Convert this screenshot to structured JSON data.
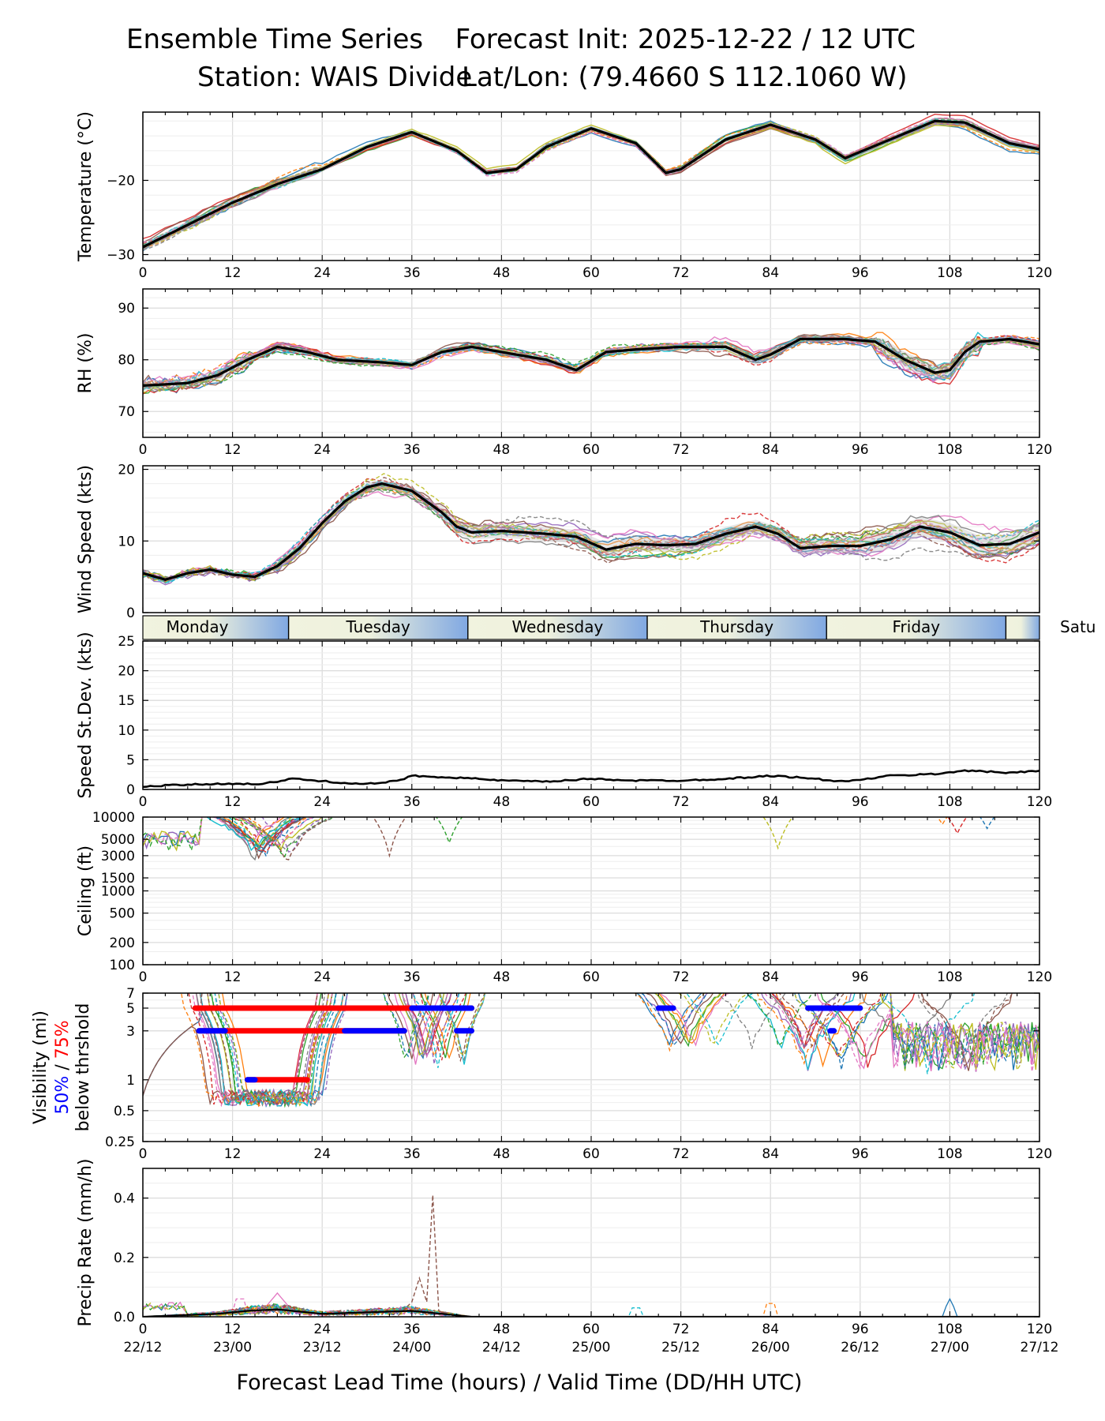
{
  "title": {
    "left": "Ensemble Time Series",
    "right": "Forecast Init: 2025-12-22 / 12 UTC",
    "station": "Station: WAIS Divide",
    "latlon": "Lat/Lon: (79.4660 S 112.1060 W)"
  },
  "colors": {
    "mean": "#000000",
    "grid": "#dddddd",
    "below50": "#0000ff",
    "below75": "#ff0000",
    "members": [
      "#1f77b4",
      "#ff7f0e",
      "#2ca02c",
      "#d62728",
      "#9467bd",
      "#8c564b",
      "#e377c2",
      "#7f7f7f",
      "#bcbd22",
      "#17becf"
    ]
  },
  "chart_data": {
    "type": "line",
    "x_range": [
      0,
      120
    ],
    "x_ticks": [
      0,
      12,
      24,
      36,
      48,
      60,
      72,
      84,
      96,
      108,
      120
    ],
    "x_tick_labels": [
      "0",
      "12",
      "24",
      "36",
      "48",
      "60",
      "72",
      "84",
      "96",
      "108",
      "120"
    ],
    "valid_time_labels": [
      "22/12",
      "23/00",
      "23/12",
      "24/00",
      "24/12",
      "25/00",
      "25/12",
      "26/00",
      "26/12",
      "27/00",
      "27/12"
    ],
    "xlabel": "Forecast Lead Time (hours) / Valid Time (DD/HH UTC)",
    "members_count": 20,
    "panels": {
      "temperature": {
        "ylabel": "Temperature (°C)",
        "ylim": [
          -30.8,
          -10.8
        ],
        "yticks": [
          -20,
          -30
        ],
        "ytick_labels": [
          "−20",
          "−30"
        ],
        "mean": [
          [
            0,
            -29
          ],
          [
            6,
            -26
          ],
          [
            12,
            -23
          ],
          [
            18,
            -20.5
          ],
          [
            24,
            -18.5
          ],
          [
            30,
            -15.5
          ],
          [
            36,
            -13.5
          ],
          [
            42,
            -16
          ],
          [
            46,
            -19
          ],
          [
            50,
            -18.5
          ],
          [
            54,
            -15.5
          ],
          [
            60,
            -13
          ],
          [
            66,
            -15
          ],
          [
            70,
            -19
          ],
          [
            72,
            -18.5
          ],
          [
            78,
            -14.5
          ],
          [
            84,
            -12.5
          ],
          [
            90,
            -14.5
          ],
          [
            94,
            -17
          ],
          [
            100,
            -14.5
          ],
          [
            106,
            -12
          ],
          [
            110,
            -12.2
          ],
          [
            116,
            -15
          ],
          [
            120,
            -15.8
          ]
        ]
      },
      "rh": {
        "ylabel": "RH (%)",
        "ylim": [
          65,
          93.7
        ],
        "yticks": [
          70,
          80,
          90
        ],
        "ytick_labels": [
          "70",
          "80",
          "90"
        ],
        "mean": [
          [
            0,
            75
          ],
          [
            6,
            75.5
          ],
          [
            10,
            77
          ],
          [
            14,
            80
          ],
          [
            18,
            82.5
          ],
          [
            22,
            81.5
          ],
          [
            26,
            80
          ],
          [
            32,
            79.5
          ],
          [
            36,
            79
          ],
          [
            40,
            81.5
          ],
          [
            44,
            82.5
          ],
          [
            48,
            81.5
          ],
          [
            54,
            80
          ],
          [
            58,
            78
          ],
          [
            62,
            81.5
          ],
          [
            66,
            82
          ],
          [
            72,
            82.5
          ],
          [
            78,
            82.5
          ],
          [
            82,
            80
          ],
          [
            84,
            81
          ],
          [
            88,
            84
          ],
          [
            94,
            84
          ],
          [
            98,
            83.5
          ],
          [
            102,
            80
          ],
          [
            106,
            77.5
          ],
          [
            108,
            78
          ],
          [
            110,
            81.5
          ],
          [
            112,
            83.5
          ],
          [
            116,
            84
          ],
          [
            120,
            83
          ]
        ]
      },
      "wind_speed": {
        "ylabel": "Wind Speed (kts)",
        "ylim": [
          0,
          20.5
        ],
        "yticks": [
          0,
          10,
          20
        ],
        "ytick_labels": [
          "0",
          "10",
          "20"
        ],
        "mean": [
          [
            0,
            5.5
          ],
          [
            3,
            4.6
          ],
          [
            6,
            5.5
          ],
          [
            9,
            6
          ],
          [
            12,
            5.3
          ],
          [
            15,
            5
          ],
          [
            18,
            6.5
          ],
          [
            21,
            9
          ],
          [
            24,
            12.5
          ],
          [
            27,
            15.5
          ],
          [
            30,
            17.5
          ],
          [
            32,
            18
          ],
          [
            36,
            17
          ],
          [
            40,
            14
          ],
          [
            42,
            12
          ],
          [
            44,
            11.2
          ],
          [
            48,
            11.4
          ],
          [
            54,
            11
          ],
          [
            58,
            10.6
          ],
          [
            62,
            8.8
          ],
          [
            66,
            9.6
          ],
          [
            70,
            9.4
          ],
          [
            74,
            9.6
          ],
          [
            78,
            11
          ],
          [
            82,
            12
          ],
          [
            85,
            11
          ],
          [
            88,
            9
          ],
          [
            92,
            9.3
          ],
          [
            96,
            9.3
          ],
          [
            100,
            10.2
          ],
          [
            104,
            12
          ],
          [
            108,
            11.2
          ],
          [
            112,
            9.4
          ],
          [
            116,
            9.6
          ],
          [
            120,
            11.2
          ]
        ]
      },
      "speed_stdev": {
        "ylabel": "Speed St.Dev. (kts)",
        "ylim": [
          0,
          25
        ],
        "yticks": [
          0,
          5,
          10,
          15,
          20,
          25
        ],
        "ytick_labels": [
          "0",
          "5",
          "10",
          "15",
          "20",
          "25"
        ],
        "mean": [
          [
            0,
            0.5
          ],
          [
            6,
            0.8
          ],
          [
            12,
            1
          ],
          [
            16,
            0.9
          ],
          [
            20,
            1.8
          ],
          [
            22,
            1.6
          ],
          [
            26,
            1.2
          ],
          [
            30,
            0.9
          ],
          [
            34,
            1.4
          ],
          [
            36,
            2.3
          ],
          [
            42,
            2
          ],
          [
            48,
            1.5
          ],
          [
            54,
            1.3
          ],
          [
            60,
            1.8
          ],
          [
            66,
            1.5
          ],
          [
            72,
            1.5
          ],
          [
            78,
            1.8
          ],
          [
            84,
            2.3
          ],
          [
            88,
            2
          ],
          [
            94,
            1.3
          ],
          [
            100,
            2.3
          ],
          [
            106,
            2.6
          ],
          [
            110,
            3.2
          ],
          [
            116,
            2.8
          ],
          [
            120,
            3.2
          ]
        ]
      },
      "ceiling": {
        "ylabel": "Ceiling (ft)",
        "scale": "log",
        "ylim": [
          100,
          10000
        ],
        "yticks": [
          100,
          200,
          500,
          1000,
          1500,
          3000,
          5000,
          10000
        ],
        "ytick_labels": [
          "100",
          "200",
          "500",
          "1000",
          "1500",
          "3000",
          "5000",
          "10000"
        ]
      },
      "visibility": {
        "ylabel_parts": [
          "Visibility (mi)",
          "50%",
          " / ",
          "75%",
          "below thrshold"
        ],
        "scale": "log",
        "ylim": [
          0.25,
          7
        ],
        "yticks": [
          0.25,
          0.5,
          1,
          3,
          5,
          7
        ],
        "ytick_labels": [
          "0.25",
          "0.5",
          "1",
          "3",
          "5",
          "7"
        ],
        "threshold_bars": [
          {
            "level": 5,
            "color": "red",
            "start": 7,
            "end": 44
          },
          {
            "level": 5,
            "color": "blue",
            "start": 36,
            "end": 44
          },
          {
            "level": 5,
            "color": "blue",
            "start": 69,
            "end": 71
          },
          {
            "level": 5,
            "color": "blue",
            "start": 89,
            "end": 96
          },
          {
            "level": 3,
            "color": "red",
            "start": 7.5,
            "end": 35
          },
          {
            "level": 3,
            "color": "blue",
            "start": 7.5,
            "end": 11
          },
          {
            "level": 3,
            "color": "blue",
            "start": 27,
            "end": 35
          },
          {
            "level": 3,
            "color": "blue",
            "start": 42,
            "end": 44
          },
          {
            "level": 3,
            "color": "blue",
            "start": 92,
            "end": 92.5
          },
          {
            "level": 1,
            "color": "red",
            "start": 14,
            "end": 22
          },
          {
            "level": 1,
            "color": "blue",
            "start": 14,
            "end": 15
          }
        ]
      },
      "precip": {
        "ylabel": "Precip Rate (mm/h)",
        "ylim": [
          0,
          0.5
        ],
        "yticks": [
          0,
          0.2,
          0.4
        ],
        "ytick_labels": [
          "0.0",
          "0.2",
          "0.4"
        ],
        "mean": [
          [
            0,
            0
          ],
          [
            10,
            0.01
          ],
          [
            14,
            0.02
          ],
          [
            18,
            0.025
          ],
          [
            24,
            0.01
          ],
          [
            36,
            0.02
          ],
          [
            44,
            0
          ],
          [
            120,
            0
          ]
        ],
        "peak_member": [
          [
            0,
            0
          ],
          [
            34,
            0
          ],
          [
            36,
            0.05
          ],
          [
            37,
            0.13
          ],
          [
            38,
            0.05
          ],
          [
            38.8,
            0.41
          ],
          [
            39.6,
            0.02
          ],
          [
            42,
            0
          ],
          [
            120,
            0
          ]
        ]
      }
    },
    "days": {
      "labels": [
        "Monday",
        "Tuesday",
        "Wednesday",
        "Thursday",
        "Friday",
        "Satu"
      ],
      "separator_hours": [
        19.5,
        43.5,
        67.5,
        91.5,
        115.5
      ]
    }
  }
}
